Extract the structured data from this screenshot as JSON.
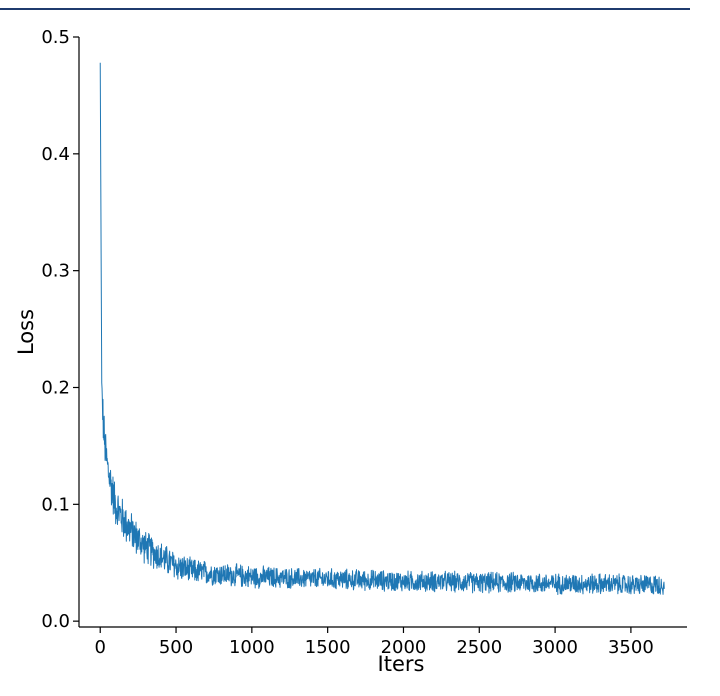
{
  "chart_data": {
    "type": "line",
    "title": "",
    "xlabel": "Iters",
    "ylabel": "Loss",
    "xlim": [
      -140,
      3870
    ],
    "ylim": [
      -0.005,
      0.5
    ],
    "xticks": [
      0,
      500,
      1000,
      1500,
      2000,
      2500,
      3000,
      3500
    ],
    "xtick_labels": [
      "0",
      "500",
      "1000",
      "1500",
      "2000",
      "2500",
      "3000",
      "3500"
    ],
    "yticks": [
      0.0,
      0.1,
      0.2,
      0.3,
      0.4,
      0.5
    ],
    "ytick_labels": [
      "0.0",
      "0.1",
      "0.2",
      "0.3",
      "0.4",
      "0.5"
    ],
    "grid": false,
    "series": [
      {
        "color": "#1f77b4",
        "x": [
          0,
          5,
          10,
          20,
          30,
          50,
          75,
          100,
          150,
          200,
          250,
          300,
          400,
          500,
          600,
          800,
          1000,
          1200,
          1500,
          1800,
          2000,
          2200,
          2500,
          2800,
          3000,
          3300,
          3500,
          3720
        ],
        "y": [
          0.478,
          0.34,
          0.2,
          0.17,
          0.15,
          0.13,
          0.115,
          0.1,
          0.087,
          0.078,
          0.07,
          0.063,
          0.055,
          0.047,
          0.043,
          0.04,
          0.038,
          0.037,
          0.036,
          0.035,
          0.034,
          0.034,
          0.033,
          0.033,
          0.032,
          0.032,
          0.031,
          0.031
        ],
        "noise_band": [
          0.0,
          0.0,
          0.012,
          0.022,
          0.022,
          0.022,
          0.021,
          0.02,
          0.02,
          0.018,
          0.017,
          0.016,
          0.015,
          0.014,
          0.012,
          0.011,
          0.011,
          0.01,
          0.01,
          0.01,
          0.01,
          0.01,
          0.01,
          0.01,
          0.01,
          0.01,
          0.01,
          0.01
        ]
      }
    ]
  }
}
